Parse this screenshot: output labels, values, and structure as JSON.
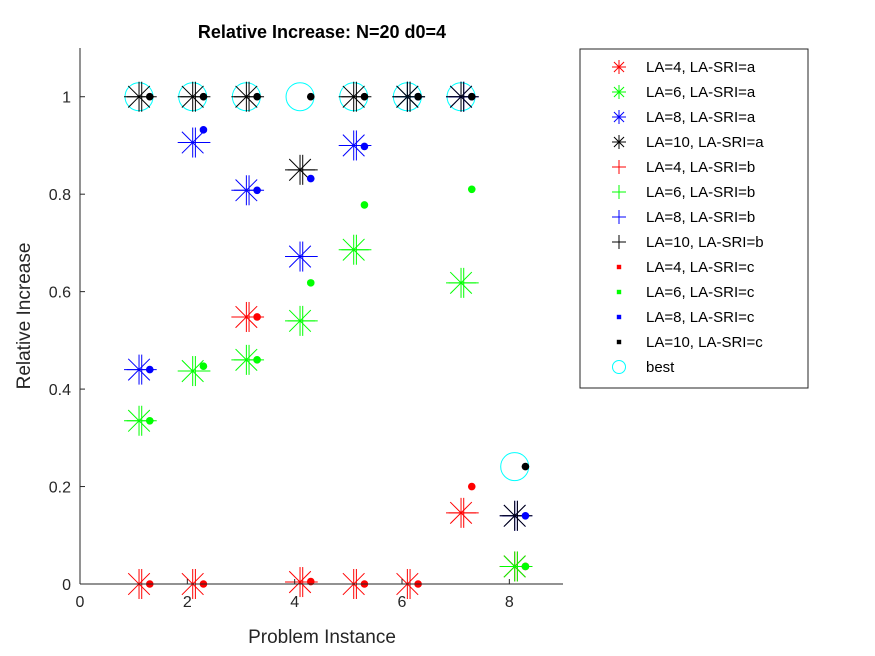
{
  "chart_data": {
    "type": "scatter",
    "title": "Relative Increase:  N=20 d0=4",
    "xlabel": "Problem Instance",
    "ylabel": "Relative Increase",
    "xlim": [
      0,
      9
    ],
    "ylim": [
      0,
      1.1
    ],
    "xticks": [
      0,
      2,
      4,
      6,
      8
    ],
    "xtick_labels": [
      "0",
      "2",
      "4",
      "6",
      "8"
    ],
    "yticks": [
      0,
      0.2,
      0.4,
      0.6,
      0.8,
      1
    ],
    "ytick_labels": [
      "0",
      "0.2",
      "0.4",
      "0.6",
      "0.8",
      "1"
    ],
    "grid": false,
    "legend_position": "outside-right-top",
    "x_offsets": {
      "a": 0.1,
      "b": 0.15,
      "c": 0.3,
      "best": 0.1
    },
    "series": [
      {
        "name": "LA=4, LA-SRI=a",
        "color": "#ff0000",
        "marker": "asterisk",
        "x": [
          1,
          2,
          3,
          4,
          5,
          6,
          7,
          8
        ],
        "values": [
          0,
          0,
          0.548,
          0.004,
          0,
          0,
          0.146,
          0.036
        ]
      },
      {
        "name": " LA=6, LA-SRI=a",
        "color": "#00ff00",
        "marker": "asterisk",
        "x": [
          1,
          2,
          3,
          4,
          5,
          6,
          7,
          8
        ],
        "values": [
          0.335,
          0.437,
          0.46,
          0.54,
          0.686,
          1,
          0.618,
          0.036
        ]
      },
      {
        "name": "LA=8, LA-SRI=a",
        "color": "#0000ff",
        "marker": "asterisk",
        "x": [
          1,
          2,
          3,
          4,
          5,
          6,
          7,
          8
        ],
        "values": [
          0.44,
          0.906,
          0.808,
          0.672,
          0.9,
          1,
          1,
          0.14
        ]
      },
      {
        "name": "LA=10, LA-SRI=a",
        "color": "#000000",
        "marker": "asterisk",
        "x": [
          1,
          2,
          3,
          4,
          5,
          6,
          7,
          8
        ],
        "values": [
          1,
          1,
          1,
          0.85,
          1,
          1,
          1,
          0.14
        ]
      },
      {
        "name": "LA=4, LA-SRI=b",
        "color": "#ff0000",
        "marker": "plus",
        "x": [
          1,
          2,
          3,
          4,
          5,
          6,
          7,
          8
        ],
        "values": [
          0,
          0,
          0.548,
          0.004,
          0,
          0,
          0.146,
          0.036
        ]
      },
      {
        "name": " LA=6, LA-SRI=b",
        "color": "#00ff00",
        "marker": "plus",
        "x": [
          1,
          2,
          3,
          4,
          5,
          6,
          7,
          8
        ],
        "values": [
          0.335,
          0.437,
          0.46,
          0.54,
          0.686,
          1,
          0.618,
          0.036
        ]
      },
      {
        "name": "LA=8, LA-SRI=b",
        "color": "#0000ff",
        "marker": "plus",
        "x": [
          1,
          2,
          3,
          4,
          5,
          6,
          7,
          8
        ],
        "values": [
          0.44,
          0.906,
          0.808,
          0.672,
          0.9,
          1,
          1,
          0.14
        ]
      },
      {
        "name": "LA=10, LA-SRI=b",
        "color": "#000000",
        "marker": "plus",
        "x": [
          1,
          2,
          3,
          4,
          5,
          6,
          7,
          8
        ],
        "values": [
          1,
          1,
          1,
          0.85,
          1,
          1,
          1,
          0.14
        ]
      },
      {
        "name": "LA=4, LA-SRI=c",
        "color": "#ff0000",
        "marker": "dot",
        "x": [
          1,
          2,
          3,
          4,
          5,
          6,
          7,
          8
        ],
        "values": [
          0,
          0,
          0.548,
          0.005,
          0,
          0,
          0.2,
          0.036
        ]
      },
      {
        "name": " LA=6, LA-SRI=c",
        "color": "#00ff00",
        "marker": "dot",
        "x": [
          1,
          2,
          3,
          4,
          5,
          6,
          7,
          8
        ],
        "values": [
          0.335,
          0.447,
          0.46,
          0.618,
          0.778,
          1,
          0.81,
          0.036
        ]
      },
      {
        "name": "LA=8, LA-SRI=c",
        "color": "#0000ff",
        "marker": "dot",
        "x": [
          1,
          2,
          3,
          4,
          5,
          6,
          7,
          8
        ],
        "values": [
          0.44,
          0.932,
          0.808,
          0.832,
          0.898,
          1,
          1,
          0.14
        ]
      },
      {
        "name": "LA=10, LA-SRI=c",
        "color": "#000000",
        "marker": "dot",
        "x": [
          1,
          2,
          3,
          4,
          5,
          6,
          7,
          8
        ],
        "values": [
          1,
          1,
          1,
          1,
          1,
          1,
          1,
          0.241
        ]
      },
      {
        "name": "best",
        "color": "#00ffff",
        "marker": "circle",
        "x": [
          1,
          2,
          3,
          4,
          5,
          6,
          7,
          8
        ],
        "values": [
          1,
          1,
          1,
          1,
          1,
          1,
          1,
          0.241
        ]
      }
    ]
  }
}
